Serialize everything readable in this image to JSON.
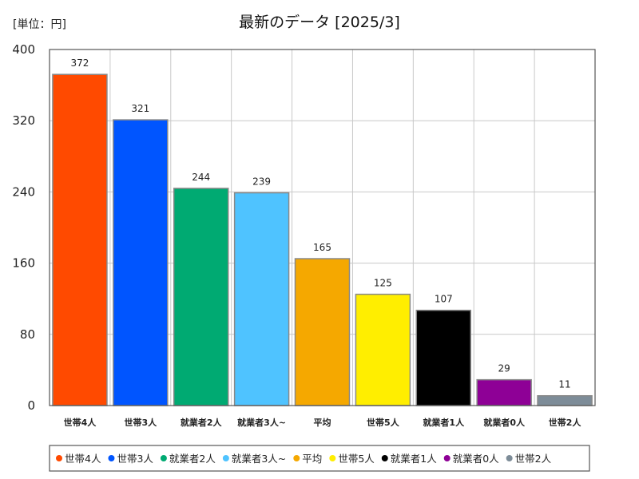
{
  "chart_data": {
    "type": "bar",
    "title": "最新のデータ [2025/3]",
    "unit_label": "[単位：円]",
    "ylim": [
      0,
      400
    ],
    "yticks": [
      0,
      80,
      160,
      240,
      320,
      400
    ],
    "grid": true,
    "legend_position": "bottom",
    "categories": [
      "世帯4人",
      "世帯3人",
      "就業者2人",
      "就業者3人~",
      "平均",
      "世帯5人",
      "就業者1人",
      "就業者0人",
      "世帯2人"
    ],
    "legend_labels": [
      "世帯4人",
      "世帯3人",
      "就業者2人",
      "就業者3人~",
      "平均",
      "世帯5人",
      "就業者1人",
      "就業者0人",
      "世帯2人"
    ],
    "values": [
      372,
      321,
      244,
      239,
      165,
      125,
      107,
      29,
      11
    ],
    "colors": [
      "#ff4a00",
      "#0055ff",
      "#00aa72",
      "#4fc3ff",
      "#f5a800",
      "#ffee00",
      "#000000",
      "#8e0096",
      "#7d8c98"
    ]
  }
}
